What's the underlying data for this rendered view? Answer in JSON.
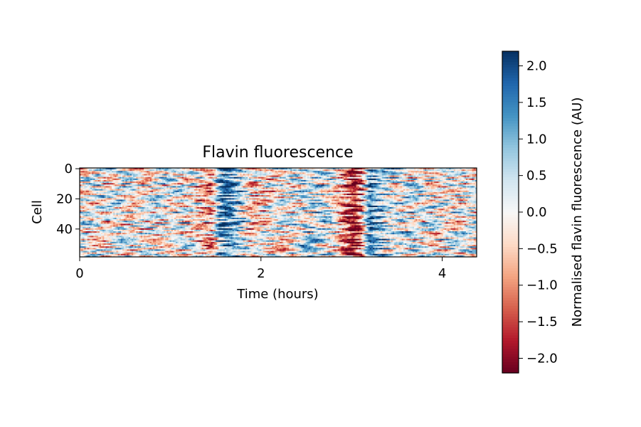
{
  "chart_data": {
    "type": "heatmap",
    "title": "Flavin fluorescence",
    "xlabel": "Time (hours)",
    "ylabel": "Cell",
    "xlim": [
      0,
      4.38
    ],
    "ylim": [
      59,
      0
    ],
    "x_ticks": [
      0,
      2,
      4
    ],
    "x_tick_labels": [
      "0",
      "2",
      "4"
    ],
    "y_ticks": [
      0,
      20,
      40
    ],
    "y_tick_labels": [
      "0",
      "20",
      "40"
    ],
    "n_cells": 59,
    "n_timepoints": 260,
    "colormap": "RdBu",
    "colormap_stops": [
      "#67001f",
      "#b2182b",
      "#d6604d",
      "#f4a582",
      "#fddbc7",
      "#f7f7f7",
      "#d1e5f0",
      "#92c5de",
      "#4393c3",
      "#2166ac",
      "#053061"
    ],
    "value_range": [
      -2.2,
      2.2
    ],
    "colorbar": {
      "label": "Normalised flavin fluorescence (AU)",
      "ticks": [
        2.0,
        1.5,
        1.0,
        0.5,
        0.0,
        -0.5,
        -1.0,
        -1.5,
        -2.0
      ],
      "tick_labels": [
        "2.0",
        "1.5",
        "1.0",
        "0.5",
        "0.0",
        "−0.5",
        "−1.0",
        "−1.5",
        "−2.0"
      ]
    },
    "population_profile": {
      "time_hours": [
        0,
        0.6,
        1.25,
        1.45,
        1.55,
        1.62,
        1.75,
        1.9,
        2.1,
        2.5,
        2.8,
        2.95,
        3.02,
        3.1,
        3.2,
        3.4,
        3.6,
        4.0,
        4.38
      ],
      "mean_value": [
        0,
        0,
        0,
        -1.0,
        1.2,
        1.8,
        0.9,
        -0.5,
        -0.3,
        0.45,
        0.15,
        -1.3,
        -2.3,
        -1.5,
        1.5,
        0.6,
        0.2,
        0,
        0
      ]
    }
  }
}
